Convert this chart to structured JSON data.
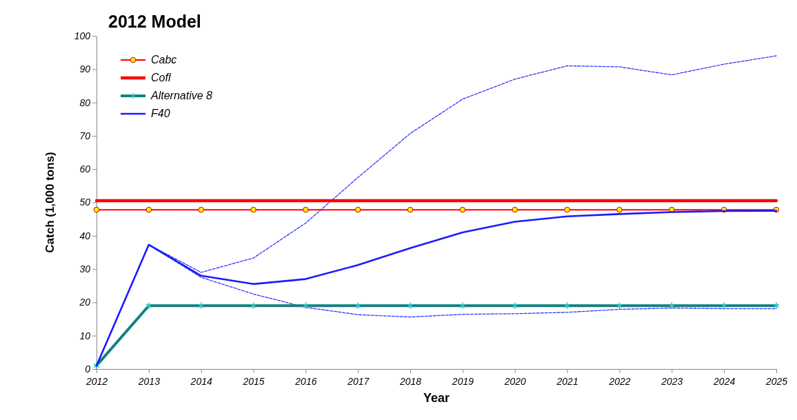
{
  "chart_data": {
    "type": "line",
    "title": "2012 Model",
    "xlabel": "Year",
    "ylabel": "Catch (1,000 tons)",
    "x": [
      2012,
      2013,
      2014,
      2015,
      2016,
      2017,
      2018,
      2019,
      2020,
      2021,
      2022,
      2023,
      2024,
      2025
    ],
    "xlim": [
      2012,
      2025
    ],
    "xticks": [
      2012,
      2013,
      2014,
      2015,
      2016,
      2017,
      2018,
      2019,
      2020,
      2021,
      2022,
      2023,
      2024,
      2025
    ],
    "ylim": [
      0,
      100
    ],
    "yticks": [
      0,
      10,
      20,
      30,
      40,
      50,
      60,
      70,
      80,
      90,
      100
    ],
    "grid": false,
    "legend": "top left",
    "series": [
      {
        "color": "#3333ff",
        "line_style": "dashed",
        "marker": "none",
        "values": [
          1,
          37.3,
          29,
          33.3,
          43.8,
          57.5,
          70.7,
          81,
          87,
          91,
          90.7,
          88.3,
          91.5,
          94
        ]
      },
      {
        "color": "#3333ff",
        "line_style": "dashed",
        "marker": "none",
        "values": [
          1,
          37.3,
          27.5,
          22.5,
          18.5,
          16.3,
          15.6,
          16.4,
          16.6,
          17,
          17.9,
          18.3,
          18.1,
          18.1
        ]
      },
      {
        "name": "Cabc",
        "color": "#ff0000",
        "line_style": "solid",
        "marker": "circle",
        "values": [
          47.8,
          47.8,
          47.8,
          47.8,
          47.8,
          47.8,
          47.8,
          47.8,
          47.8,
          47.8,
          47.8,
          47.8,
          47.8,
          47.8
        ]
      },
      {
        "name": "Cofl",
        "color": "#ff0000",
        "line_style": "solid",
        "marker": "none",
        "values": [
          50.5,
          50.5,
          50.5,
          50.5,
          50.5,
          50.5,
          50.5,
          50.5,
          50.5,
          50.5,
          50.5,
          50.5,
          50.5,
          50.5
        ]
      },
      {
        "name": "Alternative 8",
        "color": "#138080",
        "line_style": "solid",
        "marker": "cross",
        "values": [
          1,
          19,
          19,
          19,
          19,
          19,
          19,
          19,
          19,
          19,
          19,
          19,
          19,
          19
        ]
      },
      {
        "name": "F40",
        "color": "#1a1aff",
        "line_style": "solid",
        "marker": "none",
        "values": [
          1,
          37.3,
          28,
          25.5,
          27,
          31.2,
          36.3,
          41,
          44.2,
          45.8,
          46.5,
          47.1,
          47.4,
          47.5
        ]
      }
    ]
  }
}
